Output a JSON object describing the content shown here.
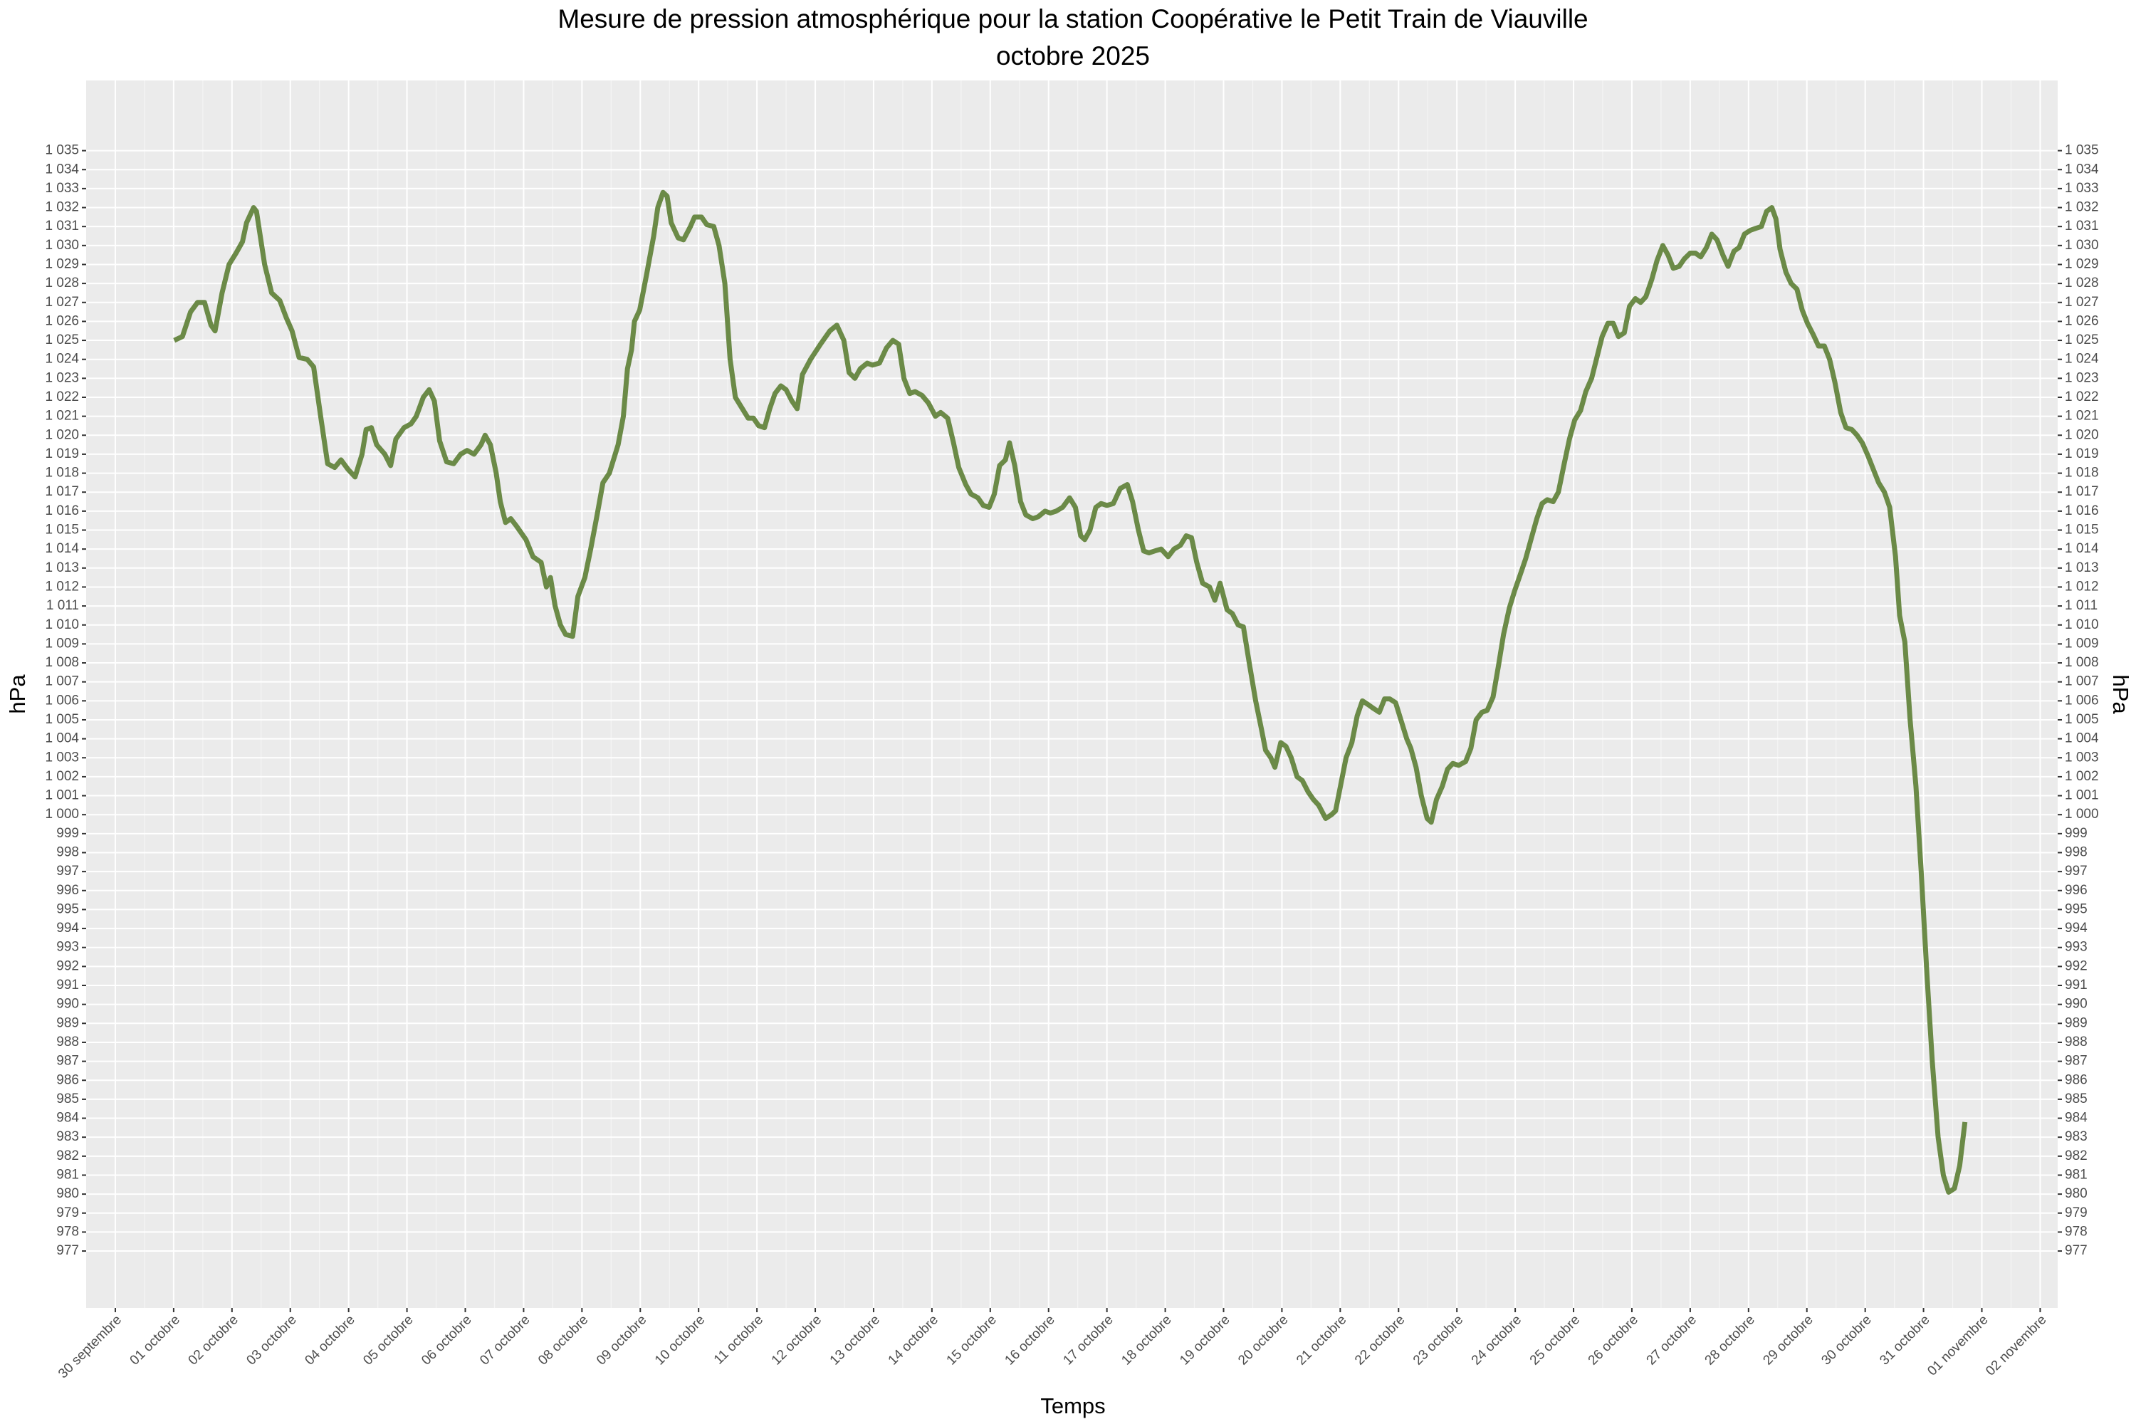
{
  "chart_data": {
    "type": "line",
    "title": "Mesure de pression atmosphérique pour la station Coopérative le Petit Train de Viauville",
    "subtitle": "octobre 2025",
    "xlabel": "Temps",
    "ylabel": "hPa",
    "grid": true,
    "xlim": [
      -0.5,
      33.3
    ],
    "ylim": [
      974.0,
      1038.7
    ],
    "xticks": [
      {
        "value": 0,
        "label": "30 septembre"
      },
      {
        "value": 1,
        "label": "01 octobre"
      },
      {
        "value": 2,
        "label": "02 octobre"
      },
      {
        "value": 3,
        "label": "03 octobre"
      },
      {
        "value": 4,
        "label": "04 octobre"
      },
      {
        "value": 5,
        "label": "05 octobre"
      },
      {
        "value": 6,
        "label": "06 octobre"
      },
      {
        "value": 7,
        "label": "07 octobre"
      },
      {
        "value": 8,
        "label": "08 octobre"
      },
      {
        "value": 9,
        "label": "09 octobre"
      },
      {
        "value": 10,
        "label": "10 octobre"
      },
      {
        "value": 11,
        "label": "11 octobre"
      },
      {
        "value": 12,
        "label": "12 octobre"
      },
      {
        "value": 13,
        "label": "13 octobre"
      },
      {
        "value": 14,
        "label": "14 octobre"
      },
      {
        "value": 15,
        "label": "15 octobre"
      },
      {
        "value": 16,
        "label": "16 octobre"
      },
      {
        "value": 17,
        "label": "17 octobre"
      },
      {
        "value": 18,
        "label": "18 octobre"
      },
      {
        "value": 19,
        "label": "19 octobre"
      },
      {
        "value": 20,
        "label": "20 octobre"
      },
      {
        "value": 21,
        "label": "21 octobre"
      },
      {
        "value": 22,
        "label": "22 octobre"
      },
      {
        "value": 23,
        "label": "23 octobre"
      },
      {
        "value": 24,
        "label": "24 octobre"
      },
      {
        "value": 25,
        "label": "25 octobre"
      },
      {
        "value": 26,
        "label": "26 octobre"
      },
      {
        "value": 27,
        "label": "27 octobre"
      },
      {
        "value": 28,
        "label": "28 octobre"
      },
      {
        "value": 29,
        "label": "29 octobre"
      },
      {
        "value": 30,
        "label": "30 octobre"
      },
      {
        "value": 31,
        "label": "31 octobre"
      },
      {
        "value": 32,
        "label": "01 novembre"
      },
      {
        "value": 33,
        "label": "02 novembre"
      }
    ],
    "yticks": [
      977,
      978,
      979,
      980,
      981,
      982,
      983,
      984,
      985,
      986,
      987,
      988,
      989,
      990,
      991,
      992,
      993,
      994,
      995,
      996,
      997,
      998,
      999,
      {
        "value": 1000,
        "label": "1 000"
      },
      {
        "value": 1001,
        "label": "1 001"
      },
      {
        "value": 1002,
        "label": "1 002"
      },
      {
        "value": 1003,
        "label": "1 003"
      },
      {
        "value": 1004,
        "label": "1 004"
      },
      {
        "value": 1005,
        "label": "1 005"
      },
      {
        "value": 1006,
        "label": "1 006"
      },
      {
        "value": 1007,
        "label": "1 007"
      },
      {
        "value": 1008,
        "label": "1 008"
      },
      {
        "value": 1009,
        "label": "1 009"
      },
      {
        "value": 1010,
        "label": "1 010"
      },
      {
        "value": 1011,
        "label": "1 011"
      },
      {
        "value": 1012,
        "label": "1 012"
      },
      {
        "value": 1013,
        "label": "1 013"
      },
      {
        "value": 1014,
        "label": "1 014"
      },
      {
        "value": 1015,
        "label": "1 015"
      },
      {
        "value": 1016,
        "label": "1 016"
      },
      {
        "value": 1017,
        "label": "1 017"
      },
      {
        "value": 1018,
        "label": "1 018"
      },
      {
        "value": 1019,
        "label": "1 019"
      },
      {
        "value": 1020,
        "label": "1 020"
      },
      {
        "value": 1021,
        "label": "1 021"
      },
      {
        "value": 1022,
        "label": "1 022"
      },
      {
        "value": 1023,
        "label": "1 023"
      },
      {
        "value": 1024,
        "label": "1 024"
      },
      {
        "value": 1025,
        "label": "1 025"
      },
      {
        "value": 1026,
        "label": "1 026"
      },
      {
        "value": 1027,
        "label": "1 027"
      },
      {
        "value": 1028,
        "label": "1 028"
      },
      {
        "value": 1029,
        "label": "1 029"
      },
      {
        "value": 1030,
        "label": "1 030"
      },
      {
        "value": 1031,
        "label": "1 031"
      },
      {
        "value": 1032,
        "label": "1 032"
      },
      {
        "value": 1033,
        "label": "1 033"
      },
      {
        "value": 1034,
        "label": "1 034"
      },
      {
        "value": 1035,
        "label": "1 035"
      }
    ],
    "x": [
      1.01,
      1.15,
      1.29,
      1.41,
      1.53,
      1.64,
      1.71,
      1.83,
      1.95,
      2.07,
      2.18,
      2.25,
      2.37,
      2.42,
      2.56,
      2.68,
      2.82,
      2.93,
      3.03,
      3.15,
      3.29,
      3.4,
      3.52,
      3.64,
      3.76,
      3.87,
      3.99,
      4.11,
      4.23,
      4.3,
      4.39,
      4.48,
      4.62,
      4.72,
      4.81,
      4.95,
      5.07,
      5.16,
      5.28,
      5.38,
      5.47,
      5.56,
      5.68,
      5.8,
      5.92,
      6.03,
      6.15,
      6.27,
      6.34,
      6.43,
      6.53,
      6.6,
      6.69,
      6.78,
      6.88,
      7.04,
      7.16,
      7.3,
      7.39,
      7.46,
      7.54,
      7.63,
      7.72,
      7.84,
      7.93,
      8.05,
      8.15,
      8.26,
      8.36,
      8.47,
      8.62,
      8.71,
      8.78,
      8.85,
      8.9,
      8.99,
      9.11,
      9.23,
      9.3,
      9.39,
      9.46,
      9.53,
      9.65,
      9.74,
      9.86,
      9.93,
      10.05,
      10.14,
      10.26,
      10.35,
      10.45,
      10.54,
      10.63,
      10.75,
      10.85,
      10.94,
      11.03,
      11.13,
      11.22,
      11.31,
      11.41,
      11.5,
      11.6,
      11.69,
      11.78,
      11.92,
      12.09,
      12.25,
      12.37,
      12.49,
      12.58,
      12.68,
      12.77,
      12.89,
      12.98,
      13.1,
      13.22,
      13.33,
      13.43,
      13.52,
      13.62,
      13.71,
      13.83,
      13.94,
      14.06,
      14.15,
      14.27,
      14.37,
      14.46,
      14.58,
      14.67,
      14.79,
      14.88,
      14.98,
      15.07,
      15.16,
      15.26,
      15.33,
      15.42,
      15.52,
      15.61,
      15.73,
      15.82,
      15.94,
      16.03,
      16.13,
      16.24,
      16.36,
      16.46,
      16.55,
      16.62,
      16.71,
      16.81,
      16.9,
      17.0,
      17.11,
      17.23,
      17.35,
      17.44,
      17.54,
      17.63,
      17.72,
      17.82,
      17.93,
      18.05,
      18.15,
      18.26,
      18.36,
      18.45,
      18.54,
      18.64,
      18.76,
      18.85,
      18.94,
      19.06,
      19.15,
      19.25,
      19.34,
      19.44,
      19.55,
      19.65,
      19.72,
      19.81,
      19.88,
      19.98,
      20.07,
      20.16,
      20.26,
      20.35,
      20.45,
      20.54,
      20.63,
      20.75,
      20.85,
      20.92,
      21.01,
      21.1,
      21.2,
      21.29,
      21.38,
      21.48,
      21.57,
      21.67,
      21.76,
      21.85,
      21.95,
      22.04,
      22.14,
      22.21,
      22.3,
      22.39,
      22.49,
      22.56,
      22.65,
      22.75,
      22.84,
      22.93,
      23.03,
      23.15,
      23.24,
      23.33,
      23.43,
      23.52,
      23.62,
      23.71,
      23.8,
      23.9,
      23.99,
      24.08,
      24.18,
      24.27,
      24.37,
      24.46,
      24.55,
      24.65,
      24.74,
      24.84,
      24.93,
      25.02,
      25.12,
      25.21,
      25.31,
      25.4,
      25.49,
      25.59,
      25.68,
      25.77,
      25.87,
      25.96,
      26.06,
      26.15,
      26.24,
      26.34,
      26.43,
      26.53,
      26.62,
      26.71,
      26.81,
      26.9,
      27.0,
      27.09,
      27.18,
      27.28,
      27.37,
      27.46,
      27.56,
      27.65,
      27.75,
      27.84,
      27.93,
      28.03,
      28.12,
      28.22,
      28.31,
      28.4,
      28.47,
      28.54,
      28.64,
      28.73,
      28.83,
      28.92,
      29.01,
      29.11,
      29.2,
      29.3,
      29.39,
      29.48,
      29.58,
      29.67,
      29.77,
      29.86,
      29.95,
      30.05,
      30.14,
      30.23,
      30.33,
      30.42,
      30.52,
      30.59,
      30.68,
      30.77,
      30.87,
      30.96,
      31.06,
      31.15,
      31.25,
      31.34,
      31.43,
      31.53,
      31.62,
      31.71
    ],
    "series": [
      {
        "color": "#6b8a47",
        "values": [
          1025.0,
          1025.2,
          1026.5,
          1027.0,
          1027.0,
          1025.8,
          1025.5,
          1027.5,
          1029.0,
          1029.6,
          1030.2,
          1031.2,
          1032.0,
          1031.8,
          1029.0,
          1027.5,
          1027.1,
          1026.2,
          1025.5,
          1024.1,
          1024.0,
          1023.6,
          1021.0,
          1018.5,
          1018.3,
          1018.7,
          1018.2,
          1017.8,
          1019.0,
          1020.3,
          1020.4,
          1019.5,
          1019.0,
          1018.4,
          1019.8,
          1020.4,
          1020.6,
          1021.0,
          1022.0,
          1022.4,
          1021.8,
          1019.7,
          1018.6,
          1018.5,
          1019.0,
          1019.2,
          1019.0,
          1019.5,
          1020.0,
          1019.5,
          1018.0,
          1016.5,
          1015.4,
          1015.6,
          1015.2,
          1014.5,
          1013.6,
          1013.3,
          1012.0,
          1012.5,
          1011.0,
          1010.0,
          1009.5,
          1009.4,
          1011.5,
          1012.5,
          1014.0,
          1015.8,
          1017.5,
          1018.0,
          1019.5,
          1021.0,
          1023.5,
          1024.5,
          1026.0,
          1026.6,
          1028.5,
          1030.5,
          1032.0,
          1032.8,
          1032.6,
          1031.2,
          1030.4,
          1030.3,
          1031.0,
          1031.5,
          1031.5,
          1031.1,
          1031.0,
          1030.0,
          1028.0,
          1024.0,
          1022.0,
          1021.4,
          1020.9,
          1020.9,
          1020.5,
          1020.4,
          1021.4,
          1022.2,
          1022.6,
          1022.4,
          1021.8,
          1021.4,
          1023.2,
          1024.0,
          1024.8,
          1025.5,
          1025.8,
          1025.0,
          1023.3,
          1023.0,
          1023.5,
          1023.8,
          1023.7,
          1023.8,
          1024.6,
          1025.0,
          1024.8,
          1023.0,
          1022.2,
          1022.3,
          1022.1,
          1021.7,
          1021.0,
          1021.2,
          1020.9,
          1019.6,
          1018.3,
          1017.4,
          1016.9,
          1016.7,
          1016.3,
          1016.2,
          1016.9,
          1018.4,
          1018.7,
          1019.6,
          1018.4,
          1016.5,
          1015.8,
          1015.6,
          1015.7,
          1016.0,
          1015.9,
          1016.0,
          1016.2,
          1016.7,
          1016.2,
          1014.7,
          1014.5,
          1015.0,
          1016.2,
          1016.4,
          1016.3,
          1016.4,
          1017.2,
          1017.4,
          1016.5,
          1015.0,
          1013.9,
          1013.8,
          1013.9,
          1014.0,
          1013.6,
          1014.0,
          1014.2,
          1014.7,
          1014.6,
          1013.3,
          1012.2,
          1012.0,
          1011.3,
          1012.2,
          1010.8,
          1010.6,
          1010.0,
          1009.9,
          1008.0,
          1006.0,
          1004.5,
          1003.4,
          1003.0,
          1002.5,
          1003.8,
          1003.6,
          1003.0,
          1002.0,
          1001.8,
          1001.2,
          1000.8,
          1000.5,
          999.8,
          1000.0,
          1000.2,
          1001.6,
          1003.0,
          1003.8,
          1005.2,
          1006.0,
          1005.8,
          1005.6,
          1005.4,
          1006.1,
          1006.1,
          1005.9,
          1005.0,
          1004.0,
          1003.5,
          1002.5,
          1001.0,
          999.8,
          999.6,
          1000.8,
          1001.5,
          1002.4,
          1002.7,
          1002.6,
          1002.8,
          1003.5,
          1005.0,
          1005.4,
          1005.5,
          1006.2,
          1007.8,
          1009.5,
          1010.9,
          1011.8,
          1012.6,
          1013.5,
          1014.5,
          1015.6,
          1016.4,
          1016.6,
          1016.5,
          1017.0,
          1018.5,
          1019.8,
          1020.8,
          1021.3,
          1022.3,
          1023.0,
          1024.1,
          1025.2,
          1025.9,
          1025.9,
          1025.2,
          1025.4,
          1026.8,
          1027.2,
          1027.0,
          1027.3,
          1028.2,
          1029.2,
          1030.0,
          1029.5,
          1028.8,
          1028.9,
          1029.3,
          1029.6,
          1029.6,
          1029.4,
          1029.9,
          1030.6,
          1030.3,
          1029.5,
          1028.9,
          1029.7,
          1029.9,
          1030.6,
          1030.8,
          1030.9,
          1031.0,
          1031.8,
          1032.0,
          1031.4,
          1029.8,
          1028.6,
          1028.0,
          1027.7,
          1026.6,
          1025.9,
          1025.3,
          1024.7,
          1024.7,
          1024.0,
          1022.8,
          1021.2,
          1020.4,
          1020.3,
          1020.0,
          1019.6,
          1018.9,
          1018.2,
          1017.5,
          1017.0,
          1016.2,
          1013.6,
          1010.5,
          1009.1,
          1005.0,
          1001.5,
          997.0,
          991.5,
          987.0,
          983.0,
          981.0,
          980.1,
          980.3,
          981.5,
          983.8
        ]
      }
    ]
  }
}
